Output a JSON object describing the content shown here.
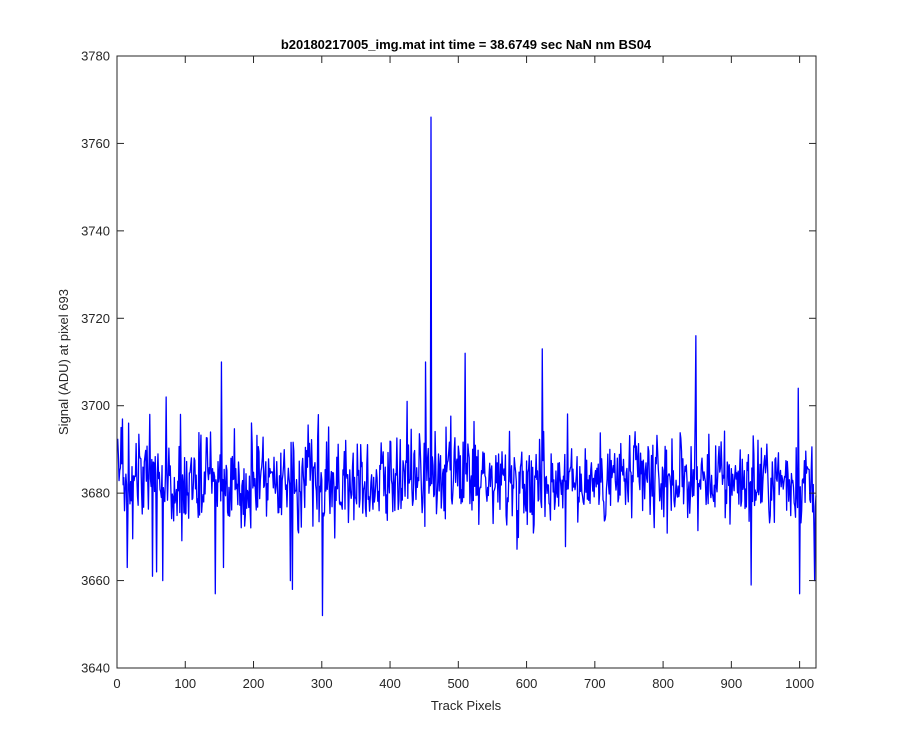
{
  "chart_data": {
    "type": "line",
    "title": "b20180217005_img.mat int time = 38.6749 sec  NaN nm BS04",
    "xlabel": "Track Pixels",
    "ylabel": "Signal (ADU) at pixel 693",
    "xlim": [
      0,
      1024
    ],
    "ylim": [
      3640,
      3780
    ],
    "xticks": [
      0,
      100,
      200,
      300,
      400,
      500,
      600,
      700,
      800,
      900,
      1000
    ],
    "yticks": [
      3640,
      3660,
      3680,
      3700,
      3720,
      3740,
      3760,
      3780
    ],
    "grid": false,
    "legend": "none",
    "series": [
      {
        "color": "#0000ff",
        "x_start": 1,
        "x_step": 1,
        "points_shown": 1024,
        "baseline": 3683,
        "noise_range": [
          3652,
          3716
        ],
        "features": [
          {
            "x": 6,
            "y": 3695
          },
          {
            "x": 15,
            "y": 3663
          },
          {
            "x": 17,
            "y": 3696
          },
          {
            "x": 48,
            "y": 3698
          },
          {
            "x": 52,
            "y": 3661
          },
          {
            "x": 58,
            "y": 3662
          },
          {
            "x": 67,
            "y": 3660
          },
          {
            "x": 72,
            "y": 3702
          },
          {
            "x": 93,
            "y": 3698
          },
          {
            "x": 144,
            "y": 3657
          },
          {
            "x": 153,
            "y": 3710
          },
          {
            "x": 156,
            "y": 3663
          },
          {
            "x": 254,
            "y": 3660
          },
          {
            "x": 257,
            "y": 3658
          },
          {
            "x": 301,
            "y": 3652
          },
          {
            "x": 425,
            "y": 3701
          },
          {
            "x": 452,
            "y": 3710
          },
          {
            "x": 460,
            "y": 3766
          },
          {
            "x": 510,
            "y": 3712
          },
          {
            "x": 623,
            "y": 3713
          },
          {
            "x": 848,
            "y": 3716
          },
          {
            "x": 929,
            "y": 3659
          },
          {
            "x": 998,
            "y": 3704
          },
          {
            "x": 1000,
            "y": 3657
          },
          {
            "x": 1022,
            "y": 3660
          }
        ]
      }
    ]
  }
}
